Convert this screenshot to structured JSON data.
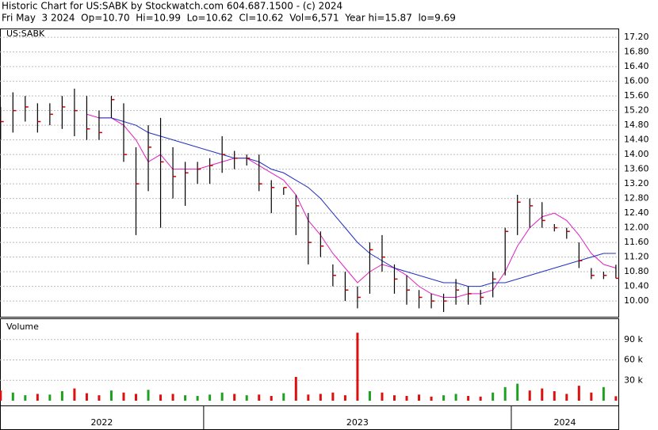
{
  "chart_data": {
    "type": "ohlc",
    "title": "Historic Chart for US:SABK by Stockwatch.com 604.687.1500 - (c) 2024",
    "subtitle": "Fri May  3 2024  Op=10.70  Hi=10.99  Lo=10.62  Cl=10.62  Vol=6,571  Year hi=15.87  lo=9.69",
    "symbol": "US:SABK",
    "x": [
      2022.34,
      2022.38,
      2022.42,
      2022.46,
      2022.5,
      2022.54,
      2022.58,
      2022.62,
      2022.66,
      2022.7,
      2022.74,
      2022.78,
      2022.82,
      2022.86,
      2022.9,
      2022.94,
      2022.98,
      2023.02,
      2023.06,
      2023.1,
      2023.14,
      2023.18,
      2023.22,
      2023.26,
      2023.3,
      2023.34,
      2023.38,
      2023.42,
      2023.46,
      2023.5,
      2023.54,
      2023.58,
      2023.62,
      2023.66,
      2023.7,
      2023.74,
      2023.78,
      2023.82,
      2023.86,
      2023.9,
      2023.94,
      2023.98,
      2024.02,
      2024.06,
      2024.1,
      2024.14,
      2024.18,
      2024.22,
      2024.26,
      2024.3,
      2024.34
    ],
    "high": [
      15.3,
      15.7,
      15.6,
      15.4,
      15.4,
      15.6,
      15.8,
      15.6,
      15.2,
      15.6,
      15.4,
      14.2,
      14.8,
      15.0,
      14.2,
      13.8,
      13.8,
      13.9,
      14.5,
      14.1,
      14.0,
      14.0,
      13.3,
      13.1,
      12.9,
      12.4,
      11.9,
      11.0,
      10.8,
      10.4,
      11.6,
      11.8,
      11.0,
      10.7,
      10.3,
      10.2,
      10.2,
      10.6,
      10.4,
      10.3,
      10.8,
      12.0,
      12.9,
      12.8,
      12.7,
      12.1,
      12.0,
      11.6,
      10.9,
      10.8,
      10.99
    ],
    "low": [
      14.4,
      14.6,
      14.9,
      14.6,
      14.8,
      14.7,
      14.5,
      14.4,
      14.4,
      15.0,
      13.8,
      11.8,
      13.0,
      12.0,
      12.8,
      12.6,
      13.2,
      13.2,
      13.5,
      13.6,
      13.7,
      13.0,
      12.4,
      12.9,
      11.8,
      11.0,
      11.2,
      10.4,
      10.0,
      9.8,
      10.2,
      10.8,
      10.2,
      9.9,
      9.8,
      9.8,
      9.7,
      9.9,
      9.9,
      9.9,
      10.1,
      10.7,
      11.8,
      12.0,
      12.0,
      11.9,
      11.7,
      10.9,
      10.6,
      10.6,
      10.62
    ],
    "close": [
      14.9,
      15.2,
      15.3,
      14.9,
      15.1,
      15.3,
      15.2,
      14.7,
      14.6,
      15.5,
      14.0,
      13.2,
      14.2,
      13.8,
      13.4,
      13.5,
      13.6,
      13.7,
      14.0,
      13.9,
      13.9,
      13.2,
      13.1,
      13.1,
      12.6,
      11.6,
      11.5,
      10.7,
      10.3,
      10.1,
      11.4,
      11.2,
      10.6,
      10.3,
      10.1,
      10.0,
      10.0,
      10.3,
      10.2,
      10.1,
      10.6,
      11.9,
      12.7,
      12.6,
      12.2,
      12.0,
      11.9,
      11.1,
      10.7,
      10.7,
      10.62
    ],
    "bar_color": "#000000",
    "close_color": "#cc0000",
    "averages": [
      {
        "color": "#e020c0",
        "values": [
          null,
          null,
          null,
          null,
          null,
          null,
          null,
          15.1,
          15.0,
          15.0,
          14.8,
          14.4,
          13.8,
          14.0,
          13.6,
          13.6,
          13.6,
          13.7,
          13.8,
          13.9,
          13.9,
          13.7,
          13.5,
          13.3,
          12.9,
          12.2,
          11.8,
          11.3,
          10.9,
          10.5,
          10.8,
          11.0,
          10.9,
          10.7,
          10.4,
          10.2,
          10.1,
          10.1,
          10.2,
          10.2,
          10.3,
          10.8,
          11.5,
          12.0,
          12.3,
          12.4,
          12.2,
          11.8,
          11.3,
          11.0,
          10.9
        ]
      },
      {
        "color": "#2030c0",
        "values": [
          null,
          null,
          null,
          null,
          null,
          null,
          null,
          null,
          15.0,
          15.0,
          14.9,
          14.8,
          14.6,
          14.5,
          14.4,
          14.3,
          14.2,
          14.1,
          14.0,
          13.9,
          13.9,
          13.8,
          13.6,
          13.5,
          13.3,
          13.1,
          12.8,
          12.4,
          12.0,
          11.6,
          11.3,
          11.1,
          10.9,
          10.8,
          10.7,
          10.6,
          10.5,
          10.5,
          10.4,
          10.4,
          10.5,
          10.5,
          10.6,
          10.7,
          10.8,
          10.9,
          11.0,
          11.1,
          11.2,
          11.3,
          11.3
        ]
      }
    ],
    "xlim": [
      2022.338,
      2024.348
    ],
    "ylim": [
      9.57,
      17.42
    ],
    "yticks": [
      {
        "value": 10,
        "label": "10.00"
      },
      {
        "value": 10.4,
        "label": "10.40"
      },
      {
        "value": 10.8,
        "label": "10.80"
      },
      {
        "value": 11.2,
        "label": "11.20"
      },
      {
        "value": 11.6,
        "label": "11.60"
      },
      {
        "value": 12,
        "label": "12.00"
      },
      {
        "value": 12.4,
        "label": "12.40"
      },
      {
        "value": 12.8,
        "label": "12.80"
      },
      {
        "value": 13.2,
        "label": "13.20"
      },
      {
        "value": 13.6,
        "label": "13.60"
      },
      {
        "value": 14,
        "label": "14.00"
      },
      {
        "value": 14.4,
        "label": "14.40"
      },
      {
        "value": 14.8,
        "label": "14.80"
      },
      {
        "value": 15.2,
        "label": "15.20"
      },
      {
        "value": 15.6,
        "label": "15.60"
      },
      {
        "value": 16,
        "label": "16.00"
      },
      {
        "value": 16.4,
        "label": "16.40"
      },
      {
        "value": 16.8,
        "label": "16.80"
      },
      {
        "value": 17.2,
        "label": "17.20"
      }
    ],
    "grid": true,
    "volume": {
      "label": "Volume",
      "up_color": "#20a020",
      "down_color": "#dd1010",
      "values": [
        15000,
        12000,
        8000,
        10000,
        9000,
        14000,
        18000,
        11000,
        8000,
        15000,
        12000,
        10000,
        16000,
        9000,
        10000,
        8000,
        7000,
        9000,
        12000,
        10000,
        8000,
        9000,
        7000,
        11000,
        35000,
        9000,
        10000,
        12000,
        8000,
        100000,
        14000,
        12000,
        8000,
        7000,
        9000,
        6000,
        8000,
        10000,
        7000,
        6000,
        12000,
        20000,
        25000,
        15000,
        18000,
        14000,
        10000,
        22000,
        12000,
        20000,
        6571
      ],
      "ylim": [
        0,
        120000
      ],
      "yticks": [
        {
          "value": 30000,
          "label": "30 k"
        },
        {
          "value": 60000,
          "label": "60 k"
        },
        {
          "value": 90000,
          "label": "90 k"
        }
      ]
    },
    "years": [
      "2022",
      "2023",
      "2024"
    ],
    "xticks": [
      2023,
      2024
    ]
  }
}
